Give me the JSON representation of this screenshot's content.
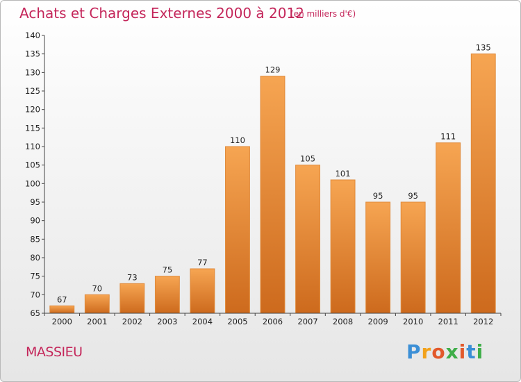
{
  "header": {
    "title": "Achats et Charges Externes 2000 à 2012",
    "unit": "(en milliers d'€)"
  },
  "footer": {
    "city": "MASSIEU",
    "logo": {
      "letters": [
        "P",
        "r",
        "o",
        "x",
        "i",
        "t",
        "i"
      ],
      "colors": [
        "#3b8fd6",
        "#f2a21b",
        "#e2592b",
        "#3fae49",
        "#e2592b",
        "#3b8fd6",
        "#3fae49"
      ]
    }
  },
  "chart_data": {
    "type": "bar",
    "title": "Achats et Charges Externes 2000 à 2012",
    "xlabel": "",
    "ylabel": "",
    "categories": [
      "2000",
      "2001",
      "2002",
      "2003",
      "2004",
      "2005",
      "2006",
      "2007",
      "2008",
      "2009",
      "2010",
      "2011",
      "2012"
    ],
    "values": [
      67,
      70,
      73,
      75,
      77,
      110,
      129,
      105,
      101,
      95,
      95,
      111,
      135
    ],
    "ylim": [
      65,
      140
    ],
    "yticks": [
      65,
      70,
      75,
      80,
      85,
      90,
      95,
      100,
      105,
      110,
      115,
      120,
      125,
      130,
      135,
      140
    ],
    "grid": false,
    "bar_color": "#f29a3a",
    "bar_dark": "#c8651a"
  }
}
